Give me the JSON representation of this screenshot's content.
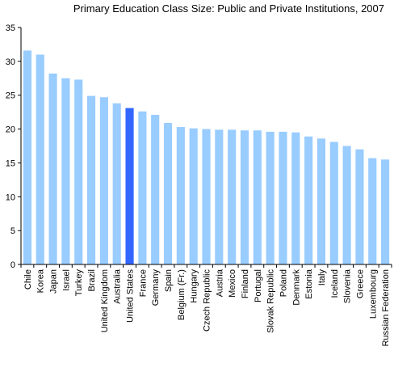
{
  "chart_data": {
    "type": "bar",
    "title": "Primary Education Class Size: Public and Private Institutions, 2007",
    "xlabel": "",
    "ylabel": "",
    "ylim": [
      0,
      35
    ],
    "yticks": [
      0,
      5,
      10,
      15,
      20,
      25,
      30,
      35
    ],
    "grid": false,
    "legend": "none",
    "colors": {
      "bar": "#99ccff",
      "highlight": "#3366ff",
      "axis": "#000000"
    },
    "highlight_category": "United States",
    "categories": [
      "Chile",
      "Korea",
      "Japan",
      "Israel",
      "Turkey",
      "Brazil",
      "United Kingdom",
      "Australia",
      "United States",
      "France",
      "Germany",
      "Spain",
      "Belgium (Fr.)",
      "Hungary",
      "Czech Republic",
      "Austria",
      "Mexico",
      "Finland",
      "Portugal",
      "Slovak Republic",
      "Poland",
      "Denmark",
      "Estonia",
      "Italy",
      "Iceland",
      "Slovenia",
      "Greece",
      "Luxembourg",
      "Russian Federation"
    ],
    "values": [
      31.6,
      31.0,
      28.2,
      27.5,
      27.3,
      24.9,
      24.7,
      23.8,
      23.1,
      22.6,
      22.1,
      20.9,
      20.3,
      20.1,
      20.0,
      19.9,
      19.9,
      19.8,
      19.8,
      19.6,
      19.6,
      19.5,
      18.9,
      18.6,
      18.1,
      17.5,
      17.0,
      15.7,
      15.5
    ]
  }
}
